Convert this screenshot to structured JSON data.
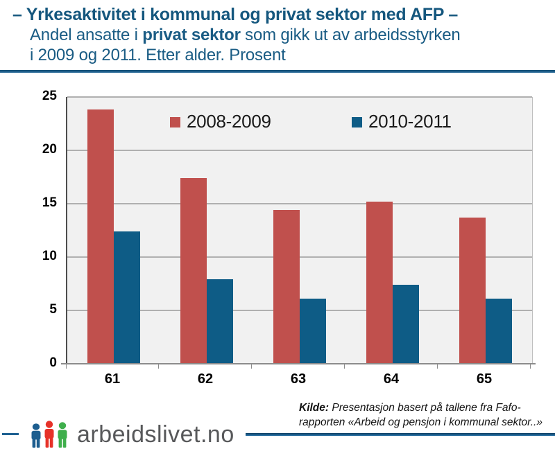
{
  "header": {
    "title": "– Yrkesaktivitet i kommunal og privat sektor med AFP –",
    "subtitle_pre": "Andel ansatte i ",
    "subtitle_bold": "privat sektor",
    "subtitle_post": " som gikk ut av arbeidsstyrken",
    "subtitle_line2": "i 2009 og 2011. Etter alder. Prosent"
  },
  "chart_data": {
    "type": "bar",
    "categories": [
      "61",
      "62",
      "63",
      "64",
      "65"
    ],
    "series": [
      {
        "name": "2008-2009",
        "color": "#c0504d",
        "values": [
          23.8,
          17.4,
          14.4,
          15.2,
          13.7
        ]
      },
      {
        "name": "2010-2011",
        "color": "#0e5c86",
        "values": [
          12.4,
          7.9,
          6.1,
          7.4,
          6.1
        ]
      }
    ],
    "xlabel": "",
    "ylabel": "",
    "ylim": [
      0,
      25
    ],
    "yticks": [
      0,
      5,
      10,
      15,
      20,
      25
    ],
    "grid": true,
    "legend_position": "top-inside",
    "plot_bg": "#f1f1f1"
  },
  "footer": {
    "source_label": "Kilde:",
    "source_line1_rest": " Presentasjon basert på tallene fra Fafo-",
    "source_line2": "rapporten «Arbeid og pensjon i kommunal sektor..»",
    "logo_text": "arbeidslivet.no"
  },
  "colors": {
    "title_blue": "#15577e",
    "header_rule": "#14587e",
    "series_red": "#c0504d",
    "series_blue": "#0e5c86",
    "plot_background": "#f1f1f1",
    "gridline_gray": "#b0b0b0",
    "logo_text_gray": "#57585a",
    "footer_line_blue": "#1d6091",
    "icon_person_blue": "#1d5e8f",
    "icon_person_red": "#e63229",
    "icon_person_green": "#3faf4c"
  }
}
